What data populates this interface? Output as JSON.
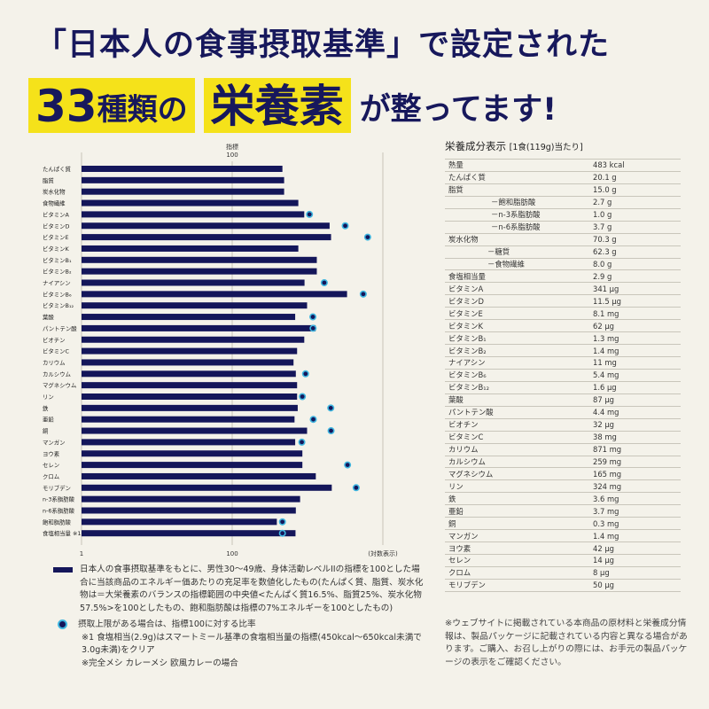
{
  "headline": {
    "line1": "「日本人の食事摂取基準」で設定された",
    "line2_number": "33",
    "line2_kind": "種類の",
    "line2_no": "の",
    "line2_highlight": "栄養素",
    "line2_tail": "が整ってます!"
  },
  "chart_data": {
    "type": "bar",
    "orientation": "horizontal",
    "scale": "log",
    "top_label_line1": "指標",
    "top_label_line2": "100",
    "axis_min_label": "1",
    "axis_ref_label": "100",
    "axis_log_label": "(対数表示)",
    "xlim": [
      1,
      1000
    ],
    "reference_value": 100,
    "categories": [
      "たんぱく質",
      "脂質",
      "炭水化物",
      "食物繊維",
      "ビタミンA",
      "ビタミンD",
      "ビタミンE",
      "ビタミンK",
      "ビタミンB₁",
      "ビタミンB₂",
      "ナイアシン",
      "ビタミンB₆",
      "ビタミンB₁₂",
      "葉酸",
      "パントテン酸",
      "ビオチン",
      "ビタミンC",
      "カリウム",
      "カルシウム",
      "マグネシウム",
      "リン",
      "鉄",
      "亜鉛",
      "銅",
      "マンガン",
      "ヨウ素",
      "セレン",
      "クロム",
      "モリブデン",
      "n-3系脂肪酸",
      "n-6系脂肪酸",
      "飽和脂肪酸",
      "食塩相当量 ※1"
    ],
    "series": [
      {
        "name": "日本人の食事摂取基準をもとに、男性30～49歳、身体活動レベルIIの指標を100とした場合に当該商品のエネルギー価あたりの充足率を数値化したもの",
        "values": [
          100,
          104,
          104,
          144,
          165,
          295,
          305,
          144,
          220,
          220,
          166,
          440,
          176,
          134,
          214,
          165,
          140,
          129,
          136,
          140,
          140,
          142,
          132,
          176,
          134,
          158,
          158,
          215,
          310,
          150,
          136,
          88,
          135
        ]
      },
      {
        "name": "摂取上限がある場合は、指標100に対する比率",
        "points": [
          {
            "category": "ビタミンA",
            "value": 186
          },
          {
            "category": "ビタミンD",
            "value": 422
          },
          {
            "category": "ビタミンE",
            "value": 706
          },
          {
            "category": "ナイアシン",
            "value": 261
          },
          {
            "category": "ビタミンB₆",
            "value": 638
          },
          {
            "category": "葉酸",
            "value": 201
          },
          {
            "category": "パントテン酸",
            "value": 202
          },
          {
            "category": "カルシウム",
            "value": 170
          },
          {
            "category": "リン",
            "value": 158
          },
          {
            "category": "鉄",
            "value": 303
          },
          {
            "category": "亜鉛",
            "value": 203
          },
          {
            "category": "銅",
            "value": 305
          },
          {
            "category": "マンガン",
            "value": 156
          },
          {
            "category": "セレン",
            "value": 445
          },
          {
            "category": "モリブデン",
            "value": 542
          },
          {
            "category": "飽和脂肪酸",
            "value": 100
          },
          {
            "category": "食塩相当量 ※1",
            "value": 100
          }
        ]
      }
    ],
    "bar_color": "#14165a",
    "dot_color": "#3fb6e0"
  },
  "legend": {
    "bar_text": "日本人の食事摂取基準をもとに、男性30～49歳、身体活動レベルIIの指標を100とした場合に当該商品のエネルギー価あたりの充足率を数値化したもの(たんぱく質、脂質、炭水化物は＝大栄養素のバランスの指標範囲の中央値<たんぱく質16.5%、脂質25%、炭水化物57.5%>を100としたもの、飽和脂肪酸は指標の7%エネルギーを100としたもの)",
    "dot_text": "摂取上限がある場合は、指標100に対する比率",
    "note1": "※1 食塩相当(2.9g)はスマートミール基準の食塩相当量の指標(450kcal～650kcal未満で3.0g未満)をクリア",
    "note2": "※完全メシ カレーメシ 欧風カレーの場合"
  },
  "nutrition_table": {
    "title": "栄養成分表示",
    "serving": "[1食(119g)当たり]",
    "rows": [
      {
        "name": "熱量",
        "value": "483 kcal",
        "indent": 0
      },
      {
        "name": "たんぱく質",
        "value": "20.1 g",
        "indent": 0
      },
      {
        "name": "脂質",
        "value": "15.0 g",
        "indent": 0
      },
      {
        "name": "－飽和脂肪酸",
        "value": "2.7 g",
        "indent": 1
      },
      {
        "name": "－n-3系脂肪酸",
        "value": "1.0 g",
        "indent": 1
      },
      {
        "name": "－n-6系脂肪酸",
        "value": "3.7 g",
        "indent": 1
      },
      {
        "name": "炭水化物",
        "value": "70.3 g",
        "indent": 0
      },
      {
        "name": "－糖質",
        "value": "62.3 g",
        "indent": 2
      },
      {
        "name": "－食物繊維",
        "value": "8.0 g",
        "indent": 2
      },
      {
        "name": "食塩相当量",
        "value": "2.9 g",
        "indent": 0
      },
      {
        "name": "ビタミンA",
        "value": "341 μg",
        "indent": 0
      },
      {
        "name": "ビタミンD",
        "value": "11.5 μg",
        "indent": 0
      },
      {
        "name": "ビタミンE",
        "value": "8.1 mg",
        "indent": 0
      },
      {
        "name": "ビタミンK",
        "value": "62 μg",
        "indent": 0
      },
      {
        "name": "ビタミンB₁",
        "value": "1.3 mg",
        "indent": 0
      },
      {
        "name": "ビタミンB₂",
        "value": "1.4 mg",
        "indent": 0
      },
      {
        "name": "ナイアシン",
        "value": "11 mg",
        "indent": 0
      },
      {
        "name": "ビタミンB₆",
        "value": "5.4 mg",
        "indent": 0
      },
      {
        "name": "ビタミンB₁₂",
        "value": "1.6 μg",
        "indent": 0
      },
      {
        "name": "葉酸",
        "value": "87 μg",
        "indent": 0
      },
      {
        "name": "パントテン酸",
        "value": "4.4 mg",
        "indent": 0
      },
      {
        "name": "ビオチン",
        "value": "32 μg",
        "indent": 0
      },
      {
        "name": "ビタミンC",
        "value": "38 mg",
        "indent": 0
      },
      {
        "name": "カリウム",
        "value": "871 mg",
        "indent": 0
      },
      {
        "name": "カルシウム",
        "value": "259 mg",
        "indent": 0
      },
      {
        "name": "マグネシウム",
        "value": "165 mg",
        "indent": 0
      },
      {
        "name": "リン",
        "value": "324 mg",
        "indent": 0
      },
      {
        "name": "鉄",
        "value": "3.6 mg",
        "indent": 0
      },
      {
        "name": "亜鉛",
        "value": "3.7 mg",
        "indent": 0
      },
      {
        "name": "銅",
        "value": "0.3 mg",
        "indent": 0
      },
      {
        "name": "マンガン",
        "value": "1.4 mg",
        "indent": 0
      },
      {
        "name": "ヨウ素",
        "value": "42 μg",
        "indent": 0
      },
      {
        "name": "セレン",
        "value": "14 μg",
        "indent": 0
      },
      {
        "name": "クロム",
        "value": "8 μg",
        "indent": 0
      },
      {
        "name": "モリブデン",
        "value": "50 μg",
        "indent": 0
      }
    ],
    "note": "※ウェブサイトに掲載されている本商品の原材料と栄養成分情報は、製品パッケージに記載されている内容と異なる場合があります。ご購入、お召し上がりの際には、お手元の製品パッケージの表示をご確認ください。"
  }
}
